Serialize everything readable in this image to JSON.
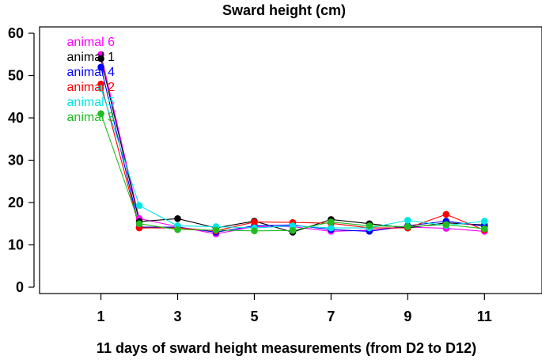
{
  "chart_data": {
    "type": "line",
    "title": "Sward height (cm)",
    "xlabel": "11 days of sward height measurements (from D2 to D12)",
    "ylabel": "",
    "xlim": [
      -0.6,
      12.5
    ],
    "ylim": [
      -1.5,
      61.5
    ],
    "x_ticks": [
      1,
      3,
      5,
      7,
      9,
      11
    ],
    "y_ticks": [
      0,
      10,
      20,
      30,
      40,
      50,
      60
    ],
    "x": [
      1,
      2,
      3,
      4,
      5,
      6,
      7,
      8,
      9,
      10,
      11
    ],
    "legend_position": "top-left",
    "grid": false,
    "series": [
      {
        "name": "animal 6",
        "color": "#ff00ff",
        "values": [
          55,
          16.2,
          14.3,
          12.6,
          14.3,
          14.3,
          13.2,
          13.5,
          14.2,
          13.9,
          13.2
        ]
      },
      {
        "name": "animal 1",
        "color": "#000000",
        "values": [
          54,
          15.5,
          16.2,
          14.0,
          15.6,
          13.0,
          16.0,
          15.0,
          14.0,
          15.2,
          14.7
        ]
      },
      {
        "name": "animal 4",
        "color": "#0000ff",
        "values": [
          52,
          14.2,
          14.2,
          13.0,
          14.5,
          14.7,
          13.6,
          13.2,
          14.5,
          15.6,
          14.4
        ]
      },
      {
        "name": "animal 2",
        "color": "#ff0000",
        "values": [
          48,
          14.0,
          14.0,
          13.3,
          15.4,
          15.3,
          15.1,
          14.0,
          14.0,
          17.2,
          13.5
        ]
      },
      {
        "name": "animal 5",
        "color": "#00e5e5",
        "values": [
          47,
          19.3,
          14.5,
          14.3,
          14.0,
          14.5,
          14.0,
          14.0,
          15.8,
          14.6,
          15.6
        ]
      },
      {
        "name": "animal 3",
        "color": "#22bb22",
        "values": [
          41,
          15.0,
          13.6,
          13.5,
          13.3,
          13.4,
          15.4,
          14.5,
          14.3,
          14.8,
          13.8
        ]
      }
    ]
  }
}
